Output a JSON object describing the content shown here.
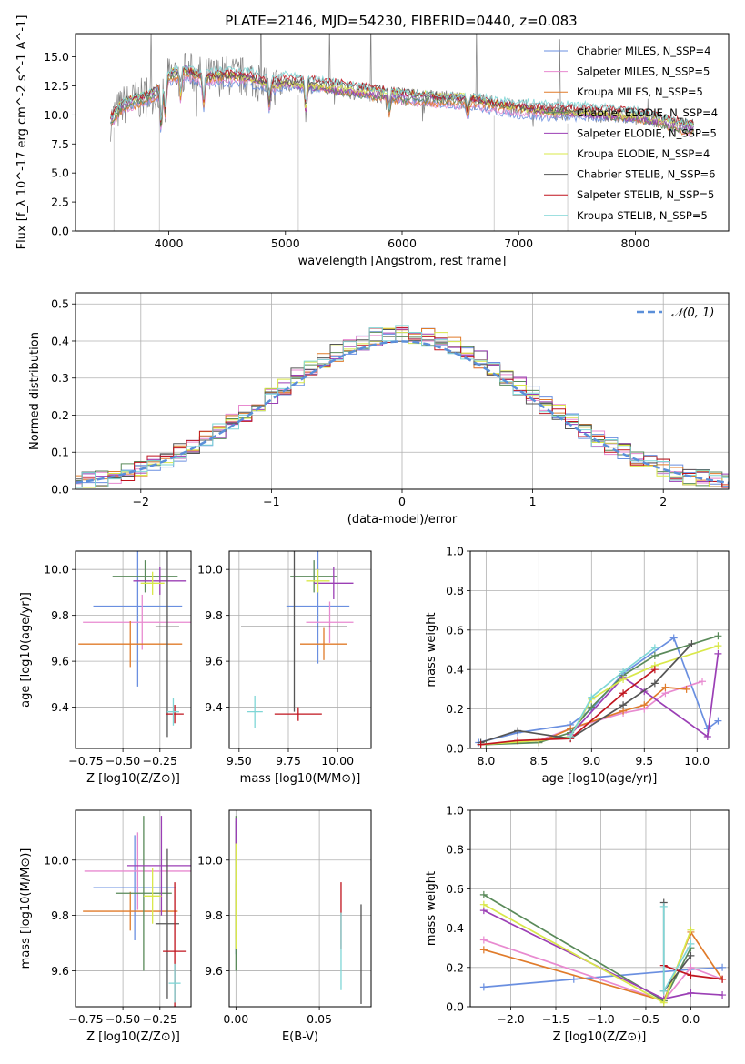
{
  "figure_title": "PLATE=2146, MJD=54230, FIBERID=0440, z=0.083",
  "model_colors": [
    "#6a8fe0",
    "#e88ad0",
    "#e07b2a",
    "#5a8a5a",
    "#9b3fb5",
    "#d9e84a",
    "#555555",
    "#c0141e",
    "#7fd6d6"
  ],
  "chart_data": [
    {
      "name": "spectrum",
      "type": "line",
      "xlabel": "wavelength [Angstrom, rest frame]",
      "ylabel": "Flux [f_λ 10^-17 erg cm^-2 s^-1 A^-1]",
      "xlim": [
        3200,
        8800
      ],
      "ylim": [
        0,
        17
      ],
      "xticks": [
        4000,
        5000,
        6000,
        7000,
        8000
      ],
      "yticks": [
        0.0,
        2.5,
        5.0,
        7.5,
        10.0,
        12.5,
        15.0
      ],
      "grid": false,
      "legend_position": "top-right",
      "data_color": "#808080",
      "series": [
        {
          "name": "Chabrier MILES, N_SSP=4"
        },
        {
          "name": "Salpeter MILES, N_SSP=5"
        },
        {
          "name": "Kroupa MILES, N_SSP=5"
        },
        {
          "name": "Chabrier ELODIE, N_SSP=4"
        },
        {
          "name": "Salpeter ELODIE, N_SSP=5"
        },
        {
          "name": "Kroupa ELODIE, N_SSP=4"
        },
        {
          "name": "Chabrier STELIB, N_SSP=6"
        },
        {
          "name": "Salpeter STELIB, N_SSP=5"
        },
        {
          "name": "Kroupa STELIB, N_SSP=5"
        }
      ],
      "continuum": [
        [
          3500,
          9.5
        ],
        [
          3600,
          10.8
        ],
        [
          3700,
          11.2
        ],
        [
          3800,
          11.5
        ],
        [
          3900,
          12.0
        ],
        [
          4000,
          13.3
        ],
        [
          4100,
          13.8
        ],
        [
          4200,
          13.6
        ],
        [
          4300,
          13.2
        ],
        [
          4500,
          13.4
        ],
        [
          4700,
          13.2
        ],
        [
          4900,
          12.5
        ],
        [
          5000,
          12.8
        ],
        [
          5200,
          12.6
        ],
        [
          5500,
          12.2
        ],
        [
          5800,
          11.8
        ],
        [
          6000,
          11.6
        ],
        [
          6300,
          11.4
        ],
        [
          6600,
          11.3
        ],
        [
          6800,
          10.9
        ],
        [
          7000,
          10.6
        ],
        [
          7300,
          10.3
        ],
        [
          7600,
          10.2
        ],
        [
          7800,
          10.0
        ],
        [
          8000,
          9.9
        ],
        [
          8200,
          9.5
        ],
        [
          8400,
          9.0
        ],
        [
          8500,
          8.9
        ]
      ]
    },
    {
      "name": "residual histogram",
      "type": "histogram",
      "xlabel": "(data-model)/error",
      "ylabel": "Normed distribution",
      "xlim": [
        -2.5,
        2.5
      ],
      "ylim": [
        0,
        0.53
      ],
      "xticks": [
        -2,
        -1,
        0,
        1,
        2
      ],
      "yticks": [
        0.0,
        0.1,
        0.2,
        0.3,
        0.4,
        0.5
      ],
      "grid": true,
      "legend_position": "top-right",
      "reference_curve": {
        "name": "𝒩(0, 1)",
        "style": "dashed",
        "color": "#5b8fd9",
        "line_width": 2.5
      },
      "bin_width": 0.1
    },
    {
      "name": "age vs Z",
      "type": "errorbar",
      "xlabel": "Z [log10(Z/Z⊙)]",
      "ylabel": "age [log10(age/yr)]",
      "xlim": [
        -0.82,
        -0.04
      ],
      "ylim": [
        9.22,
        10.08
      ],
      "xticks": [
        -0.75,
        -0.5,
        -0.25
      ],
      "xticklabels": [
        "−0.75",
        "−0.50",
        "−0.25"
      ],
      "yticks": [
        9.4,
        9.6,
        9.8,
        10.0
      ],
      "grid": true,
      "points": [
        {
          "x": -0.4,
          "xerr": 0.3,
          "y": 9.84,
          "yerr": 0.35
        },
        {
          "x": -0.37,
          "xerr": 0.4,
          "y": 9.77,
          "yerr": 0.12
        },
        {
          "x": -0.45,
          "xerr": 0.35,
          "y": 9.675,
          "yerr": 0.1
        },
        {
          "x": -0.35,
          "xerr": 0.22,
          "y": 9.97,
          "yerr": 0.07
        },
        {
          "x": -0.25,
          "xerr": 0.18,
          "y": 9.95,
          "yerr": 0.06
        },
        {
          "x": -0.3,
          "xerr": 0.08,
          "y": 9.94,
          "yerr": 0.05
        },
        {
          "x": -0.2,
          "xerr": 0.08,
          "y": 9.75,
          "yerr": 0.48
        },
        {
          "x": -0.15,
          "xerr": 0.06,
          "y": 9.37,
          "yerr": 0.04
        },
        {
          "x": -0.16,
          "xerr": 0.04,
          "y": 9.38,
          "yerr": 0.06
        }
      ]
    },
    {
      "name": "age vs mass",
      "type": "errorbar",
      "xlabel": "mass [log10(M/M⊙)]",
      "ylabel": "",
      "xlim": [
        9.45,
        10.17
      ],
      "ylim": [
        9.22,
        10.08
      ],
      "xticks": [
        9.5,
        9.75,
        10.0
      ],
      "xticklabels": [
        "9.50",
        "9.75",
        "10.00"
      ],
      "yticks": [
        9.4,
        9.6,
        9.8,
        10.0
      ],
      "grid": true,
      "points": [
        {
          "x": 9.9,
          "xerr": 0.16,
          "y": 9.84,
          "yerr": 0.25
        },
        {
          "x": 9.96,
          "xerr": 0.12,
          "y": 9.77,
          "yerr": 0.09
        },
        {
          "x": 9.93,
          "xerr": 0.12,
          "y": 9.675,
          "yerr": 0.07
        },
        {
          "x": 9.88,
          "xerr": 0.12,
          "y": 9.97,
          "yerr": 0.07
        },
        {
          "x": 9.98,
          "xerr": 0.1,
          "y": 9.94,
          "yerr": 0.07
        },
        {
          "x": 9.9,
          "xerr": 0.06,
          "y": 9.95,
          "yerr": 0.05
        },
        {
          "x": 9.78,
          "xerr": 0.27,
          "y": 9.75,
          "yerr": 0.37
        },
        {
          "x": 9.8,
          "xerr": 0.12,
          "y": 9.37,
          "yerr": 0.03
        },
        {
          "x": 9.58,
          "xerr": 0.04,
          "y": 9.38,
          "yerr": 0.07
        }
      ]
    },
    {
      "name": "mass weight vs age",
      "type": "line",
      "xlabel": "age [log10(age/yr)]",
      "ylabel": "mass weight",
      "xlim": [
        7.85,
        10.3
      ],
      "ylim": [
        0,
        1.0
      ],
      "xticks": [
        8.0,
        8.5,
        9.0,
        9.5,
        10.0
      ],
      "yticks": [
        0.0,
        0.2,
        0.4,
        0.6,
        0.8,
        1.0
      ],
      "grid": true,
      "series": [
        {
          "x": [
            7.93,
            8.3,
            8.8,
            9.0,
            9.3,
            9.78,
            10.1,
            10.2
          ],
          "y": [
            0.03,
            0.08,
            0.12,
            0.2,
            0.38,
            0.56,
            0.1,
            0.14
          ]
        },
        {
          "x": [
            8.5,
            8.8,
            9.3,
            9.5,
            9.7,
            10.05
          ],
          "y": [
            0.04,
            0.1,
            0.18,
            0.2,
            0.28,
            0.34
          ]
        },
        {
          "x": [
            8.5,
            8.8,
            9.3,
            9.5,
            9.7,
            9.9
          ],
          "y": [
            0.03,
            0.1,
            0.19,
            0.22,
            0.31,
            0.3
          ]
        },
        {
          "x": [
            8.0,
            8.5,
            8.8,
            9.0,
            9.3,
            9.6,
            10.2
          ],
          "y": [
            0.02,
            0.03,
            0.08,
            0.21,
            0.37,
            0.47,
            0.57
          ]
        },
        {
          "x": [
            8.8,
            9.3,
            9.5,
            10.1,
            10.2
          ],
          "y": [
            0.07,
            0.36,
            0.29,
            0.06,
            0.48
          ]
        },
        {
          "x": [
            7.95,
            8.5,
            8.8,
            9.0,
            9.3,
            9.6,
            10.2
          ],
          "y": [
            0.02,
            0.04,
            0.06,
            0.25,
            0.35,
            0.42,
            0.52
          ]
        },
        {
          "x": [
            7.95,
            8.3,
            8.8,
            9.3,
            9.6,
            9.95
          ],
          "y": [
            0.03,
            0.09,
            0.05,
            0.22,
            0.33,
            0.53
          ]
        },
        {
          "x": [
            7.95,
            8.3,
            8.8,
            9.3,
            9.6
          ],
          "y": [
            0.02,
            0.04,
            0.05,
            0.28,
            0.4
          ]
        },
        {
          "x": [
            8.8,
            9.0,
            9.3,
            9.6
          ],
          "y": [
            0.06,
            0.26,
            0.39,
            0.51
          ]
        }
      ]
    },
    {
      "name": "mass vs Z",
      "type": "errorbar",
      "xlabel": "Z [log10(Z/Z⊙)]",
      "ylabel": "mass [log10(M/M⊙)]",
      "xlim": [
        -0.82,
        -0.04
      ],
      "ylim": [
        9.47,
        10.18
      ],
      "xticks": [
        -0.75,
        -0.5,
        -0.25
      ],
      "xticklabels": [
        "−0.75",
        "−0.50",
        "−0.25"
      ],
      "yticks": [
        9.6,
        9.8,
        10.0
      ],
      "grid": true,
      "points": [
        {
          "x": -0.42,
          "xerr": 0.28,
          "y": 9.9,
          "yerr": 0.19
        },
        {
          "x": -0.4,
          "xerr": 0.36,
          "y": 9.96,
          "yerr": 0.14
        },
        {
          "x": -0.45,
          "xerr": 0.32,
          "y": 9.815,
          "yerr": 0.07
        },
        {
          "x": -0.36,
          "xerr": 0.19,
          "y": 9.88,
          "yerr": 0.28
        },
        {
          "x": -0.24,
          "xerr": 0.23,
          "y": 9.98,
          "yerr": 0.18
        },
        {
          "x": -0.3,
          "xerr": 0.06,
          "y": 9.87,
          "yerr": 0.1
        },
        {
          "x": -0.2,
          "xerr": 0.08,
          "y": 9.77,
          "yerr": 0.27
        },
        {
          "x": -0.15,
          "xerr": 0.08,
          "y": 9.67,
          "yerr": 0.25
        },
        {
          "x": -0.15,
          "xerr": 0.04,
          "y": 9.555,
          "yerr": 0.07
        }
      ]
    },
    {
      "name": "mass vs E(B-V)",
      "type": "errorbar",
      "xlabel": "E(B-V)",
      "ylabel": "",
      "xlim": [
        -0.004,
        0.081
      ],
      "ylim": [
        9.47,
        10.18
      ],
      "xticks": [
        0.0,
        0.05
      ],
      "xticklabels": [
        "0.00",
        "0.05"
      ],
      "yticks": [
        9.6,
        9.8,
        10.0
      ],
      "grid": true,
      "points": [
        {
          "x": 0.0,
          "xerr": 0,
          "y": 9.9,
          "yerr": 0.24
        },
        {
          "x": 0.0,
          "xerr": 0,
          "y": 9.96,
          "yerr": 0.12
        },
        {
          "x": 0.0,
          "xerr": 0,
          "y": 9.815,
          "yerr": 0.1
        },
        {
          "x": 0.0,
          "xerr": 0,
          "y": 9.88,
          "yerr": 0.28
        },
        {
          "x": 0.0,
          "xerr": 0,
          "y": 10.08,
          "yerr": 0.07
        },
        {
          "x": 0.0,
          "xerr": 0,
          "y": 9.87,
          "yerr": 0.19
        },
        {
          "x": 0.075,
          "xerr": 0,
          "y": 9.66,
          "yerr": 0.18
        },
        {
          "x": 0.063,
          "xerr": 0,
          "y": 9.8,
          "yerr": 0.12
        },
        {
          "x": 0.063,
          "xerr": 0,
          "y": 9.67,
          "yerr": 0.14
        }
      ]
    },
    {
      "name": "mass weight vs Z",
      "type": "line",
      "xlabel": "Z [log10(Z/Z⊙)]",
      "ylabel": "mass weight",
      "xlim": [
        -2.45,
        0.42
      ],
      "ylim": [
        0,
        1.0
      ],
      "xticks": [
        -2.0,
        -1.5,
        -1.0,
        -0.5,
        0.0
      ],
      "xticklabels": [
        "−2.0",
        "−1.5",
        "−1.0",
        "−0.5",
        "0.0"
      ],
      "yticks": [
        0.0,
        0.2,
        0.4,
        0.6,
        0.8,
        1.0
      ],
      "grid": true,
      "series": [
        {
          "x": [
            -2.3,
            -1.3,
            0.0,
            0.35
          ],
          "y": [
            0.1,
            0.14,
            0.19,
            0.2
          ]
        },
        {
          "x": [
            -2.3,
            -0.3,
            0.0,
            0.35
          ],
          "y": [
            0.34,
            0.03,
            0.2,
            0.14
          ]
        },
        {
          "x": [
            -2.3,
            -0.3,
            0.0,
            0.35
          ],
          "y": [
            0.29,
            0.03,
            0.38,
            0.14
          ]
        },
        {
          "x": [
            -2.3,
            -0.3,
            0.0
          ],
          "y": [
            0.57,
            0.03,
            0.3
          ]
        },
        {
          "x": [
            -2.3,
            -0.3,
            0.0,
            0.35
          ],
          "y": [
            0.49,
            0.04,
            0.07,
            0.06
          ]
        },
        {
          "x": [
            -2.3,
            -0.3,
            0.0
          ],
          "y": [
            0.52,
            0.02,
            0.39
          ]
        },
        {
          "x": [
            -0.3,
            -0.3,
            0.0
          ],
          "y": [
            0.53,
            0.08,
            0.26
          ]
        },
        {
          "x": [
            -0.3,
            0.0,
            0.35
          ],
          "y": [
            0.21,
            0.16,
            0.14
          ]
        },
        {
          "x": [
            -0.3,
            -0.3,
            0.0
          ],
          "y": [
            0.51,
            0.08,
            0.32
          ]
        }
      ]
    }
  ]
}
